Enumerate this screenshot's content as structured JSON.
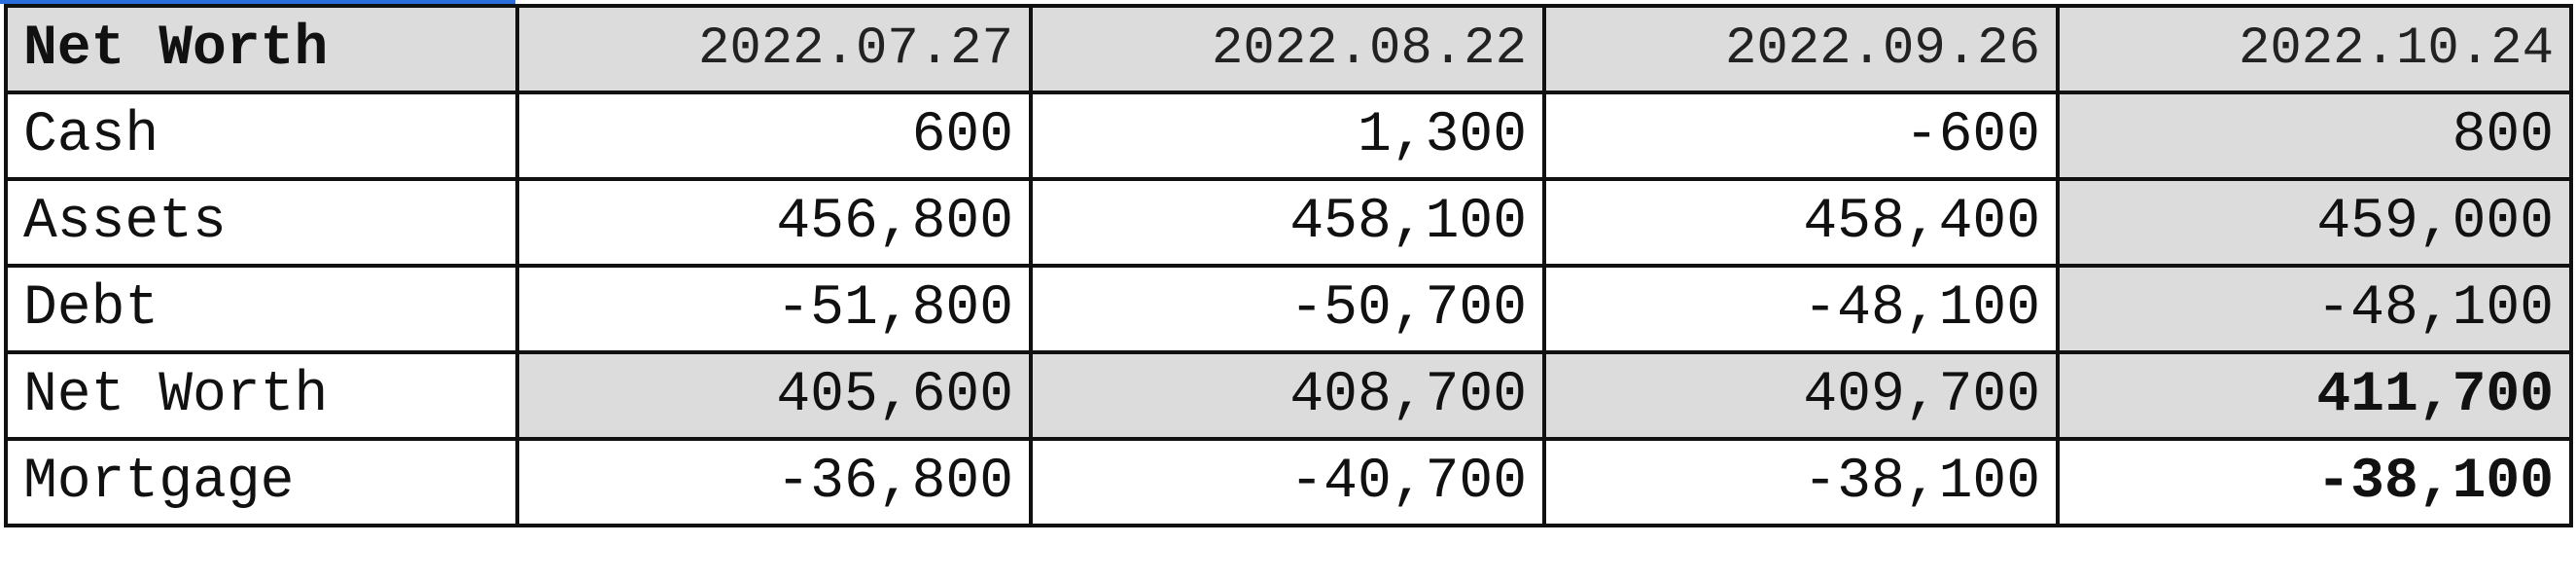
{
  "table": {
    "corner_label": "Net Worth",
    "dates": [
      "2022.07.27",
      "2022.08.22",
      "2022.09.26",
      "2022.10.24"
    ],
    "rows": [
      {
        "label": "Cash",
        "values": [
          "600",
          "1,300",
          "-600",
          "800"
        ]
      },
      {
        "label": "Assets",
        "values": [
          "456,800",
          "458,100",
          "458,400",
          "459,000"
        ]
      },
      {
        "label": "Debt",
        "values": [
          "-51,800",
          "-50,700",
          "-48,100",
          "-48,100"
        ]
      },
      {
        "label": "Net Worth",
        "values": [
          "405,600",
          "408,700",
          "409,700",
          "411,700"
        ]
      },
      {
        "label": "Mortgage",
        "values": [
          "-36,800",
          "-40,700",
          "-38,100",
          "-38,100"
        ]
      }
    ]
  },
  "colors": {
    "header_fill": "#dcdcdc",
    "grid_line": "#111111",
    "text": "#111111",
    "accent_top": "#2a6fdb"
  }
}
